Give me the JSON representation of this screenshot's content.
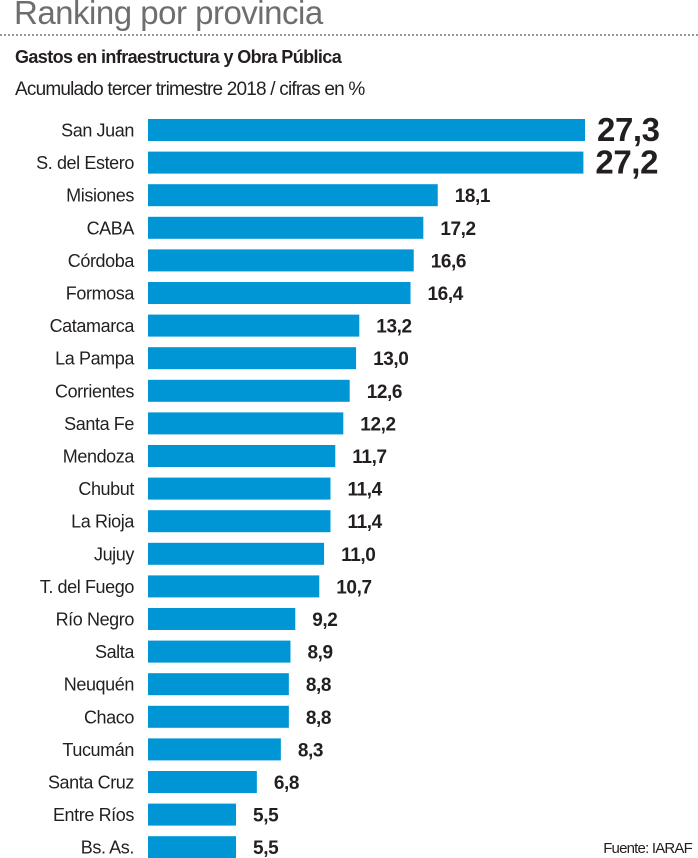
{
  "header": {
    "title": "Ranking por provincia",
    "subtitle": "Gastos en infraestructura y Obra Pública",
    "description": "Acumulado tercer trimestre 2018 / cifras en %"
  },
  "source": "Fuente: IARAF",
  "colors": {
    "bar": "#0096d6",
    "text": "#231f20",
    "title": "#6d6e70"
  },
  "chart_data": {
    "type": "bar",
    "orientation": "horizontal",
    "title": "Ranking por provincia",
    "subtitle": "Gastos en infraestructura y Obra Pública",
    "xlabel": "",
    "ylabel": "",
    "unit": "%",
    "grid": false,
    "legend": "none",
    "xlim": [
      0,
      27.3
    ],
    "categories": [
      "San Juan",
      "S. del Estero",
      "Misiones",
      "CABA",
      "Córdoba",
      "Formosa",
      "Catamarca",
      "La Pampa",
      "Corrientes",
      "Santa Fe",
      "Mendoza",
      "Chubut",
      "La Rioja",
      "Jujuy",
      "T. del Fuego",
      "Río Negro",
      "Salta",
      "Neuquén",
      "Chaco",
      "Tucumán",
      "Santa Cruz",
      "Entre Ríos",
      "Bs. As."
    ],
    "values": [
      27.3,
      27.2,
      18.1,
      17.2,
      16.6,
      16.4,
      13.2,
      13.0,
      12.6,
      12.2,
      11.7,
      11.4,
      11.4,
      11.0,
      10.7,
      9.2,
      8.9,
      8.8,
      8.8,
      8.3,
      6.8,
      5.5,
      5.5
    ],
    "labels": [
      "27,3",
      "27,2",
      "18,1",
      "17,2",
      "16,6",
      "16,4",
      "13,2",
      "13,0",
      "12,6",
      "12,2",
      "11,7",
      "11,4",
      "11,4",
      "11,0",
      "10,7",
      "9,2",
      "8,9",
      "8,8",
      "8,8",
      "8,3",
      "6,8",
      "5,5",
      "5,5"
    ],
    "highlighted": [
      "San Juan",
      "S. del Estero"
    ]
  }
}
